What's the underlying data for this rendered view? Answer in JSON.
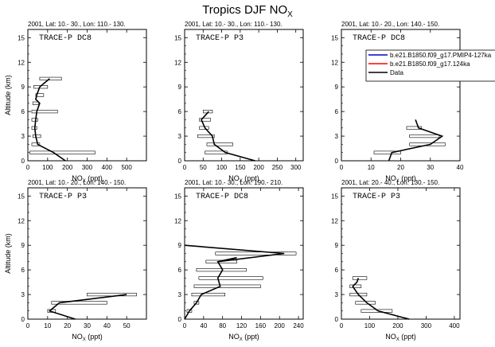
{
  "title": "Tropics DJF NO",
  "title_sub": "X",
  "chart_data": [
    {
      "type": "line",
      "subtitle": "2001, Lat: 10.- 30., Lon: 110.- 130.",
      "campaign": "TRACE-P DC8",
      "ylabel": "Altitude (km)",
      "xlabel": "NO",
      "xlabel_sub": "X",
      "xlabel_unit": " (ppt)",
      "xlim": [
        0,
        600
      ],
      "xticks": [
        0,
        100,
        200,
        300,
        400,
        500
      ],
      "ylim": [
        0,
        16
      ],
      "yticks": [
        0,
        3,
        6,
        9,
        12,
        15
      ],
      "show_ylabel": true,
      "data_line": {
        "x": [
          190,
          130,
          50,
          40,
          35,
          40,
          45,
          60,
          40,
          45,
          60,
          85,
          110
        ],
        "y": [
          0,
          1,
          2,
          3,
          4,
          5,
          6,
          7,
          7.5,
          8,
          9,
          9.5,
          10
        ]
      },
      "range_bars": [
        {
          "alt": 1,
          "lo": 10,
          "hi": 340
        },
        {
          "alt": 2,
          "lo": 20,
          "hi": 60
        },
        {
          "alt": 3,
          "lo": 25,
          "hi": 65
        },
        {
          "alt": 4,
          "lo": 20,
          "hi": 45
        },
        {
          "alt": 5,
          "lo": 20,
          "hi": 50
        },
        {
          "alt": 6,
          "lo": 20,
          "hi": 150
        },
        {
          "alt": 7,
          "lo": 25,
          "hi": 55
        },
        {
          "alt": 8,
          "lo": 40,
          "hi": 80
        },
        {
          "alt": 9,
          "lo": 30,
          "hi": 100
        },
        {
          "alt": 10,
          "lo": 60,
          "hi": 170
        }
      ]
    },
    {
      "type": "line",
      "subtitle": "2001, Lat: 10.- 30., Lon: 110.- 130.",
      "campaign": "TRACE-P P3",
      "ylabel": "",
      "xlabel": "NO",
      "xlabel_sub": "X",
      "xlabel_unit": " (ppt)",
      "xlim": [
        0,
        320
      ],
      "xticks": [
        0,
        50,
        100,
        150,
        200,
        250,
        300
      ],
      "ylim": [
        0,
        16
      ],
      "yticks": [
        0,
        3,
        6,
        9,
        12,
        15
      ],
      "show_ylabel": false,
      "data_line": {
        "x": [
          190,
          110,
          80,
          75,
          55,
          45,
          55,
          65
        ],
        "y": [
          0,
          1,
          2,
          3,
          4,
          5,
          5.5,
          6
        ]
      },
      "range_bars": [
        {
          "alt": 1,
          "lo": 55,
          "hi": 115
        },
        {
          "alt": 2,
          "lo": 60,
          "hi": 130
        },
        {
          "alt": 3,
          "lo": 35,
          "hi": 80
        },
        {
          "alt": 4,
          "lo": 40,
          "hi": 65
        },
        {
          "alt": 5,
          "lo": 40,
          "hi": 70
        },
        {
          "alt": 6,
          "lo": 50,
          "hi": 75
        }
      ]
    },
    {
      "type": "line",
      "subtitle": "2001, Lat: 10.- 20., Lon: 140.- 150.",
      "campaign": "TRACE-P DC8",
      "ylabel": "",
      "xlabel": "NO",
      "xlabel_sub": "X",
      "xlabel_unit": " (ppt)",
      "xlim": [
        0,
        40
      ],
      "xticks": [
        0,
        10,
        20,
        30,
        40
      ],
      "ylim": [
        0,
        16
      ],
      "yticks": [
        0,
        3,
        6,
        9,
        12,
        15
      ],
      "show_ylabel": false,
      "data_line": {
        "x": [
          16,
          17,
          30,
          34,
          26,
          25
        ],
        "y": [
          0,
          1,
          2,
          3,
          4,
          5
        ]
      },
      "range_bars": [
        {
          "alt": 1,
          "lo": 11,
          "hi": 20
        },
        {
          "alt": 2,
          "lo": 23,
          "hi": 35
        },
        {
          "alt": 3,
          "lo": 23,
          "hi": 33
        },
        {
          "alt": 4,
          "lo": 22,
          "hi": 27
        }
      ],
      "legend": [
        {
          "label": "b.e21.B1850.f09_g17.PMIP4-127ka",
          "color": "#0000cc"
        },
        {
          "label": "b.e21.B1850.f09_g17.124ka",
          "color": "#ff0000"
        },
        {
          "label": "Data",
          "color": "#000000"
        }
      ],
      "legend_position": "top-right"
    },
    {
      "type": "line",
      "subtitle": "2001, Lat: 10.- 20., Lon: 140.- 150.",
      "campaign": "TRACE-P P3",
      "ylabel": "Altitude (km)",
      "xlabel": "NO",
      "xlabel_sub": "X",
      "xlabel_unit": " (ppt)",
      "xlim": [
        0,
        60
      ],
      "xticks": [
        0,
        10,
        20,
        30,
        40,
        50
      ],
      "ylim": [
        0,
        16
      ],
      "yticks": [
        0,
        3,
        6,
        9,
        12,
        15
      ],
      "show_ylabel": true,
      "data_line": {
        "x": [
          24,
          11,
          16,
          50
        ],
        "y": [
          0,
          1,
          2,
          3
        ]
      },
      "range_bars": [
        {
          "alt": 1,
          "lo": 10,
          "hi": 14
        },
        {
          "alt": 2,
          "lo": 12,
          "hi": 40
        },
        {
          "alt": 3,
          "lo": 30,
          "hi": 55
        }
      ]
    },
    {
      "type": "line",
      "subtitle": "2001, Lat: 10.- 30., Lon: 190.- 210.",
      "campaign": "TRACE-P DC8",
      "ylabel": "",
      "xlabel": "NO",
      "xlabel_sub": "X",
      "xlabel_unit": " (ppt)",
      "xlim": [
        0,
        250
      ],
      "xticks": [
        0,
        40,
        80,
        120,
        160,
        200,
        240
      ],
      "ylim": [
        0,
        16
      ],
      "yticks": [
        0,
        3,
        6,
        9,
        12,
        15
      ],
      "show_ylabel": false,
      "data_line": {
        "x": [
          0,
          10,
          25,
          35,
          75,
          70,
          80,
          70,
          110,
          70,
          210,
          0
        ],
        "y": [
          0,
          1,
          2,
          3,
          4,
          5,
          6,
          7,
          7.5,
          7,
          8,
          9
        ]
      },
      "range_bars": [
        {
          "alt": 1,
          "lo": 5,
          "hi": 15
        },
        {
          "alt": 2,
          "lo": 20,
          "hi": 30
        },
        {
          "alt": 3,
          "lo": 15,
          "hi": 85
        },
        {
          "alt": 4,
          "lo": 20,
          "hi": 160
        },
        {
          "alt": 5,
          "lo": 30,
          "hi": 165
        },
        {
          "alt": 6,
          "lo": 25,
          "hi": 130
        },
        {
          "alt": 7,
          "lo": 45,
          "hi": 110
        },
        {
          "alt": 8,
          "lo": 65,
          "hi": 235
        }
      ]
    },
    {
      "type": "line",
      "subtitle": "2001, Lat: 20.- 40., Lon: 130.- 150.",
      "campaign": "TRACE-P P3",
      "ylabel": "",
      "xlabel": "NO",
      "xlabel_sub": "X",
      "xlabel_unit": " (ppt)",
      "xlim": [
        0,
        420
      ],
      "xticks": [
        0,
        100,
        200,
        300,
        400
      ],
      "ylim": [
        0,
        16
      ],
      "yticks": [
        0,
        3,
        6,
        9,
        12,
        15
      ],
      "show_ylabel": false,
      "data_line": {
        "x": [
          240,
          130,
          90,
          60,
          50,
          40,
          55,
          60
        ],
        "y": [
          0,
          1,
          2,
          3,
          3.5,
          4,
          4.5,
          5
        ]
      },
      "range_bars": [
        {
          "alt": 1,
          "lo": 70,
          "hi": 180
        },
        {
          "alt": 2,
          "lo": 50,
          "hi": 120
        },
        {
          "alt": 3,
          "lo": 30,
          "hi": 90
        },
        {
          "alt": 4,
          "lo": 30,
          "hi": 70
        },
        {
          "alt": 5,
          "lo": 40,
          "hi": 90
        }
      ]
    }
  ]
}
